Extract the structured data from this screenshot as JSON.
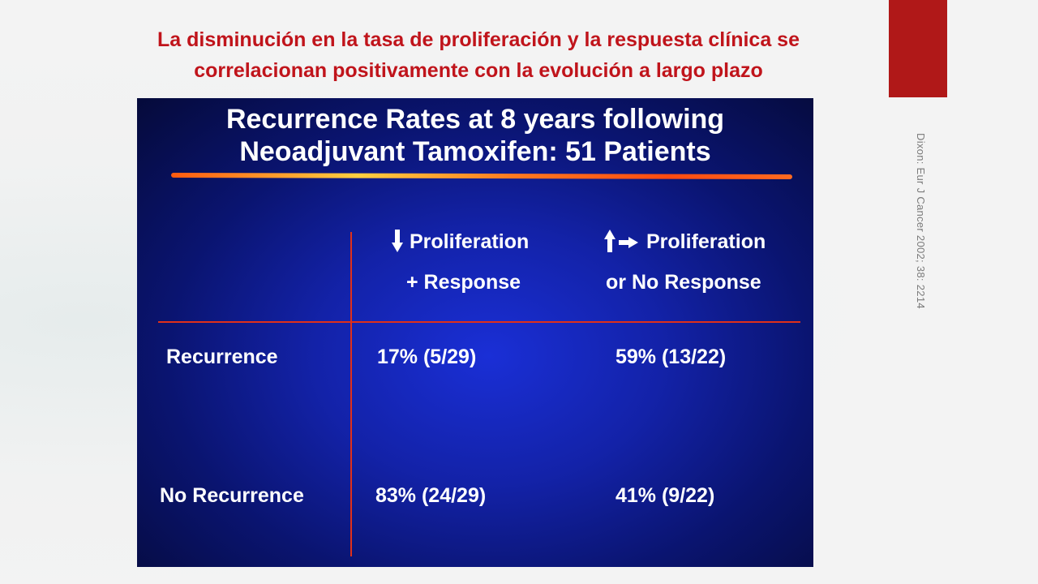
{
  "slide": {
    "title_line1": "La disminución en la tasa de proliferación y la respuesta clínica se",
    "title_line2": "correlacionan positivamente con la evolución a largo plazo",
    "citation": "Dixon: Eur J Cancer 2002; 38: 2214",
    "accent_color": "#b01818",
    "title_color": "#c0141b"
  },
  "figure": {
    "title_line1": "Recurrence Rates at 8 years following",
    "title_line2": "Neoadjuvant Tamoxifen: 51 Patients",
    "columns": [
      {
        "line1": "Proliferation",
        "line2": "+ Response",
        "icon": "arrow-down-icon"
      },
      {
        "line1": "Proliferation",
        "line2": "or No Response",
        "icon": "arrow-up-right-icon"
      }
    ],
    "rows": [
      {
        "label": "Recurrence",
        "values": [
          "17% (5/29)",
          "59% (13/22)"
        ]
      },
      {
        "label": "No Recurrence",
        "values": [
          "83% (24/29)",
          "41% (9/22)"
        ]
      }
    ],
    "line_color": "#e0301a"
  }
}
